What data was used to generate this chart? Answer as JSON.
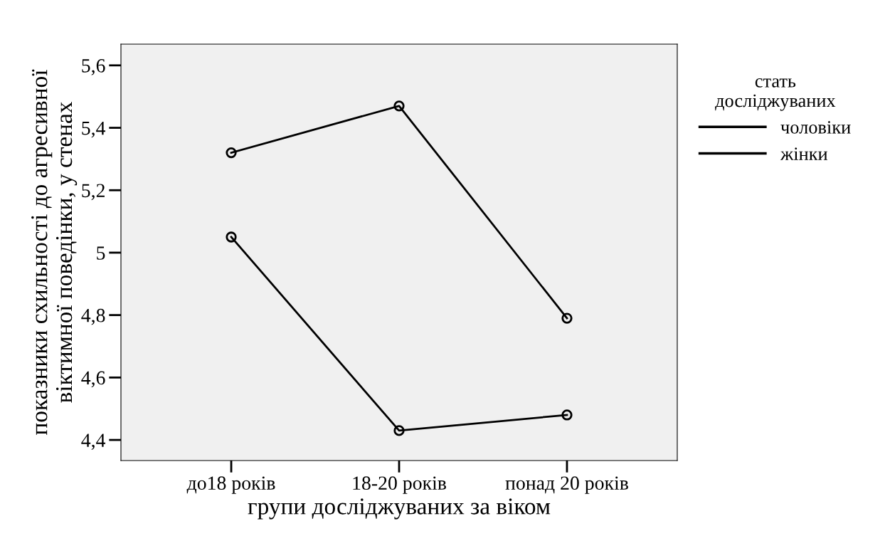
{
  "chart_data": {
    "type": "line",
    "xlabel": "групи досліджуваних за віком",
    "ylabel": "показники схильності до агресивної\nвіктимної поведінки, у стенах",
    "categories": [
      "до18 років",
      "18-20 років",
      "понад 20 років"
    ],
    "series": [
      {
        "name": "чоловіки",
        "color": "#000000",
        "values": [
          5.32,
          5.47,
          4.79
        ]
      },
      {
        "name": "жінки",
        "color": "#000000",
        "values": [
          5.05,
          4.43,
          4.48
        ]
      }
    ],
    "legend_title": "стать\nдосліджуваних",
    "legend": "right",
    "marker": "circle",
    "line_style": "solid",
    "grid": false,
    "ylim": [
      4.334,
      5.668
    ],
    "yticks": [
      {
        "value": 4.4,
        "label": "4,4"
      },
      {
        "value": 4.6,
        "label": "4,6"
      },
      {
        "value": 4.8,
        "label": "4,8"
      },
      5,
      {
        "value": 5.2,
        "label": "5,2"
      },
      {
        "value": 5.4,
        "label": "5,4"
      },
      {
        "value": 5.6,
        "label": "5,6"
      }
    ]
  }
}
